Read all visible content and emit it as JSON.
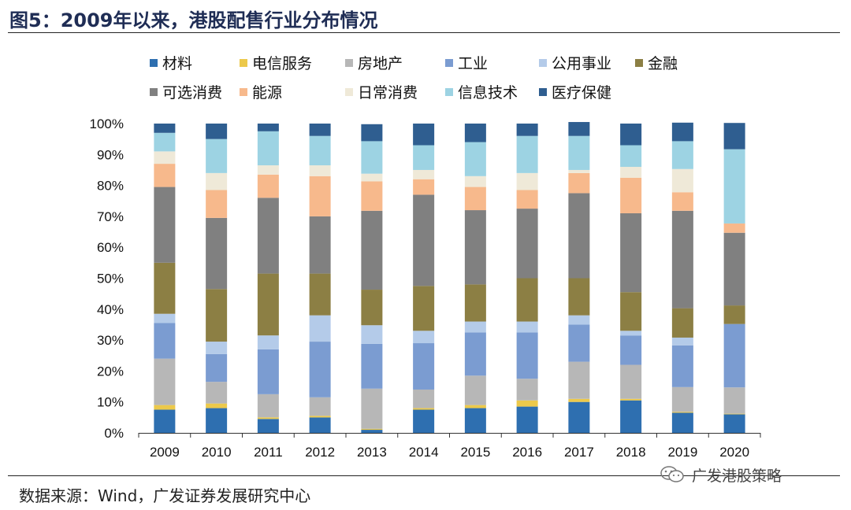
{
  "figure": {
    "title": "图5：2009年以来，港股配售行业分布情况",
    "source": "数据来源：Wind，广发证券发展研究中心",
    "watermark": "广发港股策略"
  },
  "chart_data": {
    "type": "bar",
    "stacked": true,
    "percent": true,
    "title": "图5：2009年以来，港股配售行业分布情况",
    "xlabel": "",
    "ylabel": "",
    "ylim": [
      0,
      100
    ],
    "y_ticks": [
      "0%",
      "10%",
      "20%",
      "30%",
      "40%",
      "50%",
      "60%",
      "70%",
      "80%",
      "90%",
      "100%"
    ],
    "legend_position": "top",
    "categories": [
      "2009",
      "2010",
      "2011",
      "2012",
      "2013",
      "2014",
      "2015",
      "2016",
      "2017",
      "2018",
      "2019",
      "2020"
    ],
    "series": [
      {
        "name": "材料",
        "color": "#2e6fb0",
        "values": [
          7.5,
          8.0,
          4.5,
          5.0,
          1.0,
          7.5,
          8.0,
          8.5,
          10.0,
          10.5,
          6.5,
          6.0
        ]
      },
      {
        "name": "电信服务",
        "color": "#ecc94b",
        "values": [
          1.5,
          1.5,
          0.5,
          0.5,
          0.3,
          0.5,
          1.0,
          2.0,
          1.0,
          0.5,
          0.3,
          0.2
        ]
      },
      {
        "name": "房地产",
        "color": "#b7b7b7",
        "values": [
          15.0,
          7.0,
          7.5,
          6.0,
          13.0,
          6.0,
          9.5,
          7.0,
          12.0,
          11.0,
          8.0,
          8.5
        ]
      },
      {
        "name": "工业",
        "color": "#7b9cd1",
        "values": [
          11.5,
          9.0,
          14.5,
          18.0,
          14.5,
          15.0,
          14.0,
          15.0,
          12.0,
          9.5,
          13.5,
          20.5
        ]
      },
      {
        "name": "公用事业",
        "color": "#b4cbe9",
        "values": [
          3.0,
          4.0,
          4.5,
          8.5,
          6.0,
          4.0,
          3.5,
          3.5,
          3.0,
          1.5,
          2.5,
          0.0
        ]
      },
      {
        "name": "金融",
        "color": "#8c7f44",
        "values": [
          16.5,
          17.0,
          20.0,
          13.5,
          11.5,
          14.5,
          12.0,
          14.0,
          12.0,
          12.5,
          9.5,
          6.0
        ]
      },
      {
        "name": "可选消费",
        "color": "#808080",
        "values": [
          24.5,
          23.0,
          24.5,
          18.5,
          25.5,
          29.5,
          24.0,
          22.5,
          27.5,
          25.5,
          31.5,
          23.5
        ]
      },
      {
        "name": "能源",
        "color": "#f7b98c",
        "values": [
          7.5,
          9.0,
          7.5,
          13.0,
          9.5,
          5.0,
          7.5,
          6.0,
          6.5,
          11.5,
          6.0,
          3.0
        ]
      },
      {
        "name": "日常消费",
        "color": "#efe9d8",
        "values": [
          4.0,
          5.5,
          3.0,
          3.5,
          2.5,
          3.0,
          3.5,
          5.5,
          1.0,
          3.5,
          7.5,
          0.0
        ]
      },
      {
        "name": "信息技术",
        "color": "#9dd3e3",
        "values": [
          6.0,
          11.0,
          11.0,
          9.5,
          10.5,
          8.0,
          11.0,
          12.0,
          11.0,
          7.0,
          9.0,
          24.0
        ]
      },
      {
        "name": "医疗保健",
        "color": "#2f5e90",
        "values": [
          3.0,
          5.0,
          2.5,
          4.0,
          5.5,
          7.0,
          6.0,
          4.0,
          4.5,
          7.0,
          6.0,
          8.5
        ]
      }
    ]
  }
}
